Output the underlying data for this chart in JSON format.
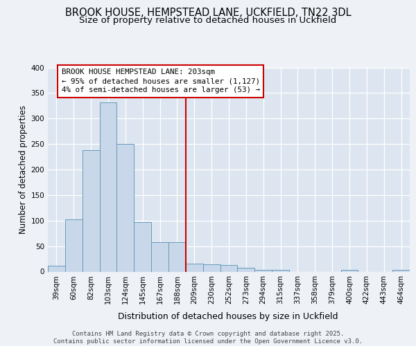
{
  "title": "BROOK HOUSE, HEMPSTEAD LANE, UCKFIELD, TN22 3DL",
  "subtitle": "Size of property relative to detached houses in Uckfield",
  "xlabel": "Distribution of detached houses by size in Uckfield",
  "ylabel": "Number of detached properties",
  "categories": [
    "39sqm",
    "60sqm",
    "82sqm",
    "103sqm",
    "124sqm",
    "145sqm",
    "167sqm",
    "188sqm",
    "209sqm",
    "230sqm",
    "252sqm",
    "273sqm",
    "294sqm",
    "315sqm",
    "337sqm",
    "358sqm",
    "379sqm",
    "400sqm",
    "422sqm",
    "443sqm",
    "464sqm"
  ],
  "values": [
    11,
    102,
    238,
    331,
    250,
    97,
    57,
    57,
    15,
    14,
    13,
    8,
    3,
    3,
    0,
    0,
    0,
    3,
    0,
    0,
    3
  ],
  "bar_color": "#c8d8ea",
  "bar_edge_color": "#6699bb",
  "bg_color": "#dde6f0",
  "fig_bg_color": "#eef2f7",
  "grid_color": "#ffffff",
  "vline_color": "#cc0000",
  "vline_index": 7.5,
  "annotation_text": "BROOK HOUSE HEMPSTEAD LANE: 203sqm\n← 95% of detached houses are smaller (1,127)\n4% of semi-detached houses are larger (53) →",
  "annot_fc": "#ffffff",
  "annot_ec": "#cc0000",
  "ylim_max": 400,
  "yticks": [
    0,
    50,
    100,
    150,
    200,
    250,
    300,
    350,
    400
  ],
  "footer": "Contains HM Land Registry data © Crown copyright and database right 2025.\nContains public sector information licensed under the Open Government Licence v3.0.",
  "title_fontsize": 10.5,
  "subtitle_fontsize": 9.5,
  "ylabel_fontsize": 8.5,
  "xlabel_fontsize": 9,
  "tick_fontsize": 7.5,
  "annot_fontsize": 7.8,
  "footer_fontsize": 6.5
}
